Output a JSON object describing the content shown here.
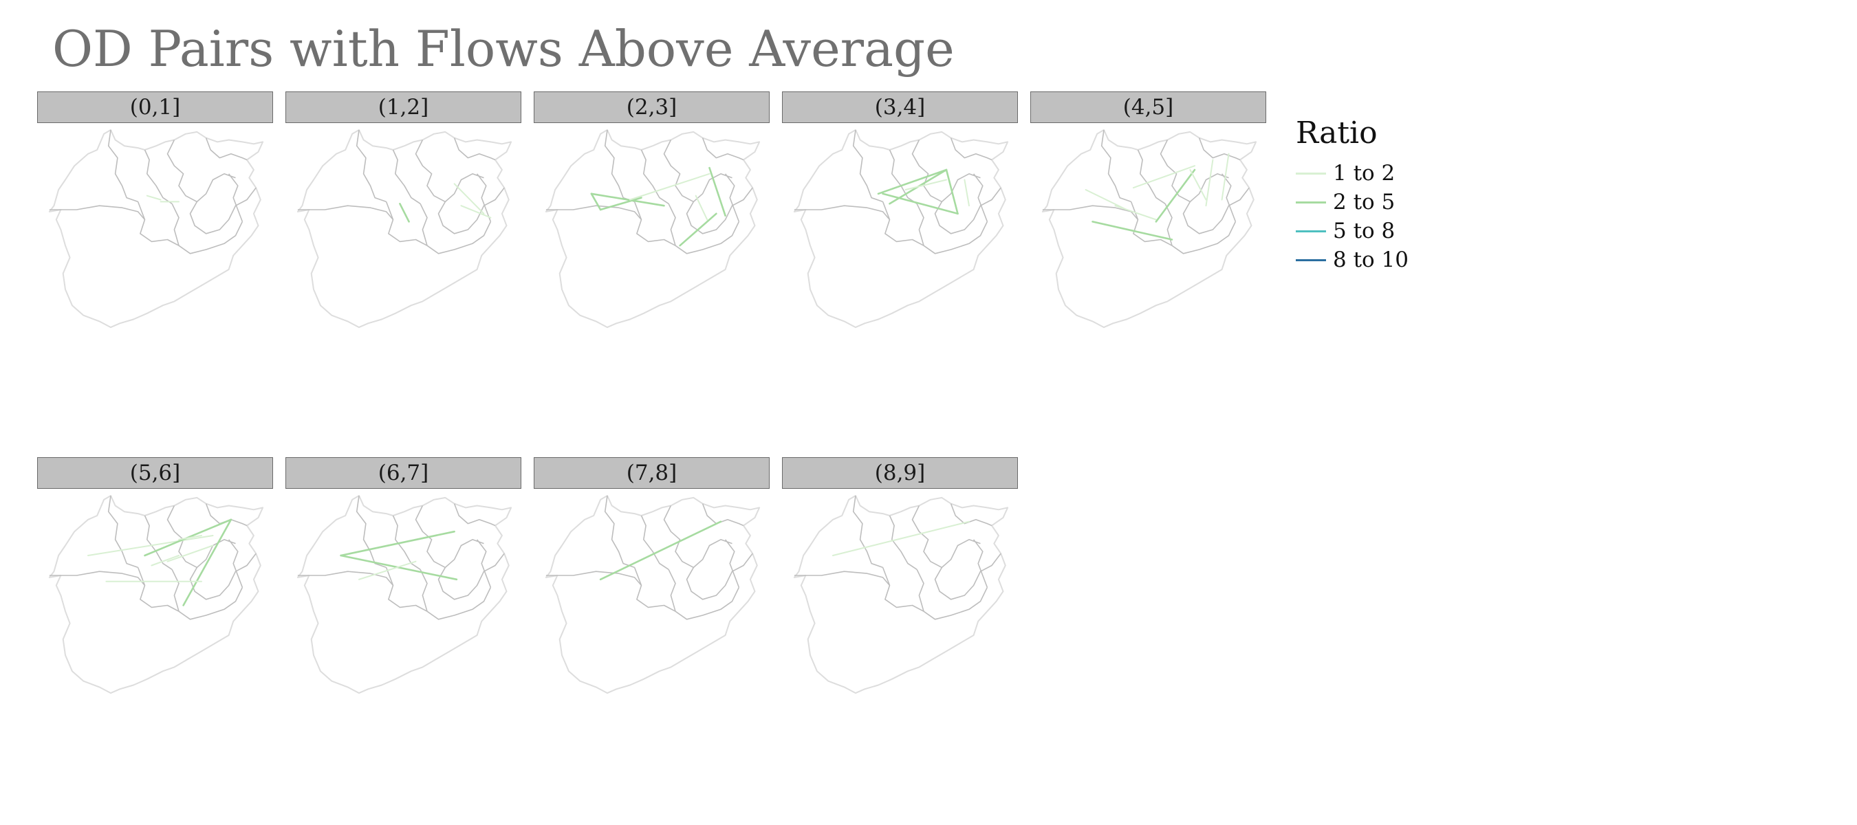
{
  "title": "OD Pairs with Flows Above Average",
  "legend": {
    "title": "Ratio",
    "items": [
      {
        "label": "1 to 2",
        "color": "#d9f0d3"
      },
      {
        "label": "2 to 5",
        "color": "#a6dba0"
      },
      {
        "label": "5 to 8",
        "color": "#4ec0c0"
      },
      {
        "label": "8 to 10",
        "color": "#2b6fa0"
      }
    ]
  },
  "basemap": {
    "outline_color": "#dddddd",
    "inner_boundary_color": "#bdbdbd"
  },
  "panels": [
    {
      "label": "(0,1]",
      "flows": [
        {
          "from": [
            0.52,
            0.36
          ],
          "to": [
            0.6,
            0.36
          ],
          "ratio": "1 to 2"
        },
        {
          "from": [
            0.46,
            0.33
          ],
          "to": [
            0.52,
            0.35
          ],
          "ratio": "1 to 2"
        }
      ]
    },
    {
      "label": "(1,2]",
      "flows": [
        {
          "from": [
            0.48,
            0.37
          ],
          "to": [
            0.52,
            0.46
          ],
          "ratio": "2 to 5"
        },
        {
          "from": [
            0.72,
            0.27
          ],
          "to": [
            0.85,
            0.42
          ],
          "ratio": "1 to 2"
        },
        {
          "from": [
            0.75,
            0.38
          ],
          "to": [
            0.88,
            0.44
          ],
          "ratio": "1 to 2"
        }
      ]
    },
    {
      "label": "(2,3]",
      "flows": [
        {
          "from": [
            0.23,
            0.32
          ],
          "to": [
            0.55,
            0.38
          ],
          "ratio": "2 to 5"
        },
        {
          "from": [
            0.23,
            0.32
          ],
          "to": [
            0.27,
            0.4
          ],
          "ratio": "2 to 5"
        },
        {
          "from": [
            0.27,
            0.4
          ],
          "to": [
            0.45,
            0.34
          ],
          "ratio": "2 to 5"
        },
        {
          "from": [
            0.4,
            0.35
          ],
          "to": [
            0.75,
            0.22
          ],
          "ratio": "1 to 2"
        },
        {
          "from": [
            0.75,
            0.19
          ],
          "to": [
            0.82,
            0.43
          ],
          "ratio": "2 to 5"
        },
        {
          "from": [
            0.62,
            0.58
          ],
          "to": [
            0.78,
            0.42
          ],
          "ratio": "2 to 5"
        },
        {
          "from": [
            0.69,
            0.33
          ],
          "to": [
            0.74,
            0.45
          ],
          "ratio": "1 to 2"
        }
      ]
    },
    {
      "label": "(3,4]",
      "flows": [
        {
          "from": [
            0.4,
            0.32
          ],
          "to": [
            0.7,
            0.2
          ],
          "ratio": "2 to 5"
        },
        {
          "from": [
            0.45,
            0.37
          ],
          "to": [
            0.7,
            0.2
          ],
          "ratio": "2 to 5"
        },
        {
          "from": [
            0.7,
            0.2
          ],
          "to": [
            0.75,
            0.42
          ],
          "ratio": "2 to 5"
        },
        {
          "from": [
            0.42,
            0.32
          ],
          "to": [
            0.75,
            0.42
          ],
          "ratio": "2 to 5"
        },
        {
          "from": [
            0.52,
            0.3
          ],
          "to": [
            0.7,
            0.25
          ],
          "ratio": "1 to 2"
        },
        {
          "from": [
            0.78,
            0.25
          ],
          "to": [
            0.8,
            0.38
          ],
          "ratio": "1 to 2"
        }
      ]
    },
    {
      "label": "(4,5]",
      "flows": [
        {
          "from": [
            0.25,
            0.46
          ],
          "to": [
            0.6,
            0.55
          ],
          "ratio": "2 to 5"
        },
        {
          "from": [
            0.35,
            0.38
          ],
          "to": [
            0.53,
            0.45
          ],
          "ratio": "1 to 2"
        },
        {
          "from": [
            0.53,
            0.46
          ],
          "to": [
            0.7,
            0.2
          ],
          "ratio": "2 to 5"
        },
        {
          "from": [
            0.43,
            0.29
          ],
          "to": [
            0.7,
            0.18
          ],
          "ratio": "1 to 2"
        },
        {
          "from": [
            0.22,
            0.3
          ],
          "to": [
            0.4,
            0.4
          ],
          "ratio": "1 to 2"
        },
        {
          "from": [
            0.78,
            0.15
          ],
          "to": [
            0.75,
            0.38
          ],
          "ratio": "1 to 2"
        },
        {
          "from": [
            0.85,
            0.12
          ],
          "to": [
            0.82,
            0.35
          ],
          "ratio": "1 to 2"
        },
        {
          "from": [
            0.68,
            0.2
          ],
          "to": [
            0.75,
            0.35
          ],
          "ratio": "1 to 2"
        }
      ]
    },
    {
      "label": "(5,6]",
      "flows": [
        {
          "from": [
            0.2,
            0.3
          ],
          "to": [
            0.75,
            0.2
          ],
          "ratio": "1 to 2"
        },
        {
          "from": [
            0.45,
            0.3
          ],
          "to": [
            0.83,
            0.12
          ],
          "ratio": "2 to 5"
        },
        {
          "from": [
            0.83,
            0.12
          ],
          "to": [
            0.62,
            0.55
          ],
          "ratio": "2 to 5"
        },
        {
          "from": [
            0.28,
            0.43
          ],
          "to": [
            0.7,
            0.43
          ],
          "ratio": "1 to 2"
        },
        {
          "from": [
            0.48,
            0.35
          ],
          "to": [
            0.6,
            0.3
          ],
          "ratio": "1 to 2"
        },
        {
          "from": [
            0.55,
            0.33
          ],
          "to": [
            0.75,
            0.25
          ],
          "ratio": "1 to 2"
        },
        {
          "from": [
            0.6,
            0.22
          ],
          "to": [
            0.7,
            0.2
          ],
          "ratio": "1 to 2"
        }
      ]
    },
    {
      "label": "(6,7]",
      "flows": [
        {
          "from": [
            0.22,
            0.3
          ],
          "to": [
            0.72,
            0.18
          ],
          "ratio": "2 to 5"
        },
        {
          "from": [
            0.22,
            0.3
          ],
          "to": [
            0.73,
            0.42
          ],
          "ratio": "2 to 5"
        },
        {
          "from": [
            0.3,
            0.42
          ],
          "to": [
            0.55,
            0.33
          ],
          "ratio": "1 to 2"
        }
      ]
    },
    {
      "label": "(7,8]",
      "flows": [
        {
          "from": [
            0.27,
            0.42
          ],
          "to": [
            0.8,
            0.13
          ],
          "ratio": "2 to 5"
        }
      ]
    },
    {
      "label": "(8,9]",
      "flows": [
        {
          "from": [
            0.2,
            0.3
          ],
          "to": [
            0.8,
            0.13
          ],
          "ratio": "1 to 2"
        }
      ]
    }
  ]
}
